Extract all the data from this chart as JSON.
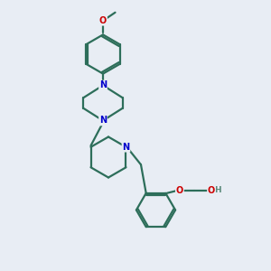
{
  "background_color": "#e8edf4",
  "bond_color": "#2d6e5a",
  "N_color": "#0000cc",
  "O_color": "#cc0000",
  "H_color": "#5a8a7a",
  "line_width": 1.6,
  "font_size_atom": 7.0,
  "fig_width": 3.0,
  "fig_height": 3.0,
  "dpi": 100,
  "xlim": [
    0,
    10
  ],
  "ylim": [
    0,
    10
  ]
}
